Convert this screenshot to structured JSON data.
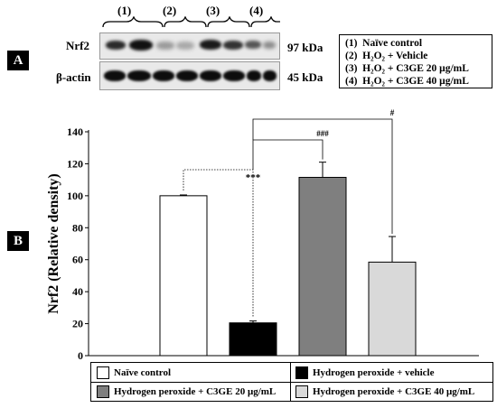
{
  "panels": {
    "a": "A",
    "b": "B"
  },
  "blot": {
    "lane_groups": [
      "(1)",
      "(2)",
      "(3)",
      "(4)"
    ],
    "rows": [
      {
        "label": "Nrf2",
        "size": "97 kDa"
      },
      {
        "label": "β-actin",
        "size": "45 kDa"
      }
    ]
  },
  "conditions": [
    {
      "num": "(1)",
      "text": "Naïve control"
    },
    {
      "num": "(2)",
      "text": "H₂O₂ + Vehicle"
    },
    {
      "num": "(3)",
      "text": "H₂O₂ + C3GE 20 μg/mL"
    },
    {
      "num": "(4)",
      "text": "H₂O₂ + C3GE 40 μg/mL"
    }
  ],
  "chart_data": {
    "type": "bar",
    "ylabel": "Nrf2 (Relative density)",
    "ylim": [
      0,
      140
    ],
    "yticks": [
      0,
      20,
      40,
      60,
      80,
      100,
      120,
      140
    ],
    "grid": false,
    "legend_position": "bottom",
    "series": [
      {
        "name": "Naïve control",
        "value": 100,
        "error": 0.5,
        "color": "#ffffff"
      },
      {
        "name": "Hydrogen peroxide + vehicle",
        "value": 20.5,
        "error": 1.2,
        "color": "#000000"
      },
      {
        "name": "Hydrogen peroxide + C3GE 20 μg/mL",
        "value": 111.5,
        "error": 9.5,
        "color": "#7f7f7f"
      },
      {
        "name": "Hydrogen peroxide + C3GE 40 μg/mL",
        "value": 58.5,
        "error": 16,
        "color": "#d9d9d9"
      }
    ],
    "annotations": [
      "***",
      "###",
      "#"
    ]
  }
}
